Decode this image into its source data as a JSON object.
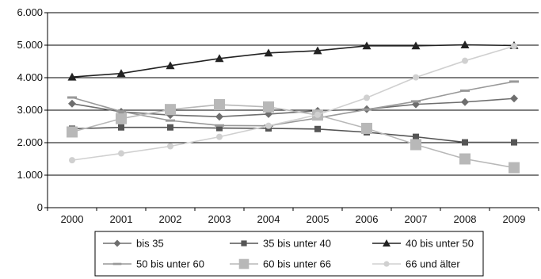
{
  "chart_data": {
    "type": "line",
    "title": "",
    "xlabel": "",
    "ylabel": "",
    "categories": [
      "2000",
      "2001",
      "2002",
      "2003",
      "2004",
      "2005",
      "2006",
      "2007",
      "2008",
      "2009"
    ],
    "ylim": [
      0,
      6000
    ],
    "yticks": [
      0,
      1000,
      2000,
      3000,
      4000,
      5000,
      6000
    ],
    "ytick_labels": [
      "0",
      "1.000",
      "2.000",
      "3.000",
      "4.000",
      "5.000",
      "6.000"
    ],
    "grid": "horizontal",
    "legend_position": "bottom",
    "series": [
      {
        "name": "bis 35",
        "marker": "diamond",
        "color": "#6e6e6e",
        "values": [
          3200,
          2950,
          2850,
          2800,
          2880,
          2980,
          3030,
          3180,
          3250,
          3360
        ]
      },
      {
        "name": "35 bis unter 40",
        "marker": "square-small",
        "color": "#555555",
        "values": [
          2430,
          2470,
          2470,
          2450,
          2440,
          2420,
          2320,
          2180,
          2010,
          2010
        ]
      },
      {
        "name": "40 bis unter 50",
        "marker": "triangle",
        "color": "#222222",
        "values": [
          4020,
          4130,
          4370,
          4590,
          4760,
          4830,
          4980,
          4980,
          5010,
          4990
        ]
      },
      {
        "name": "50 bis unter 60",
        "marker": "dash",
        "color": "#999999",
        "values": [
          3390,
          2960,
          2680,
          2530,
          2520,
          2760,
          3020,
          3270,
          3600,
          3880
        ]
      },
      {
        "name": "60 bis unter 66",
        "marker": "square-large",
        "color": "#b8b8b8",
        "values": [
          2330,
          2740,
          3020,
          3170,
          3100,
          2850,
          2440,
          1940,
          1500,
          1230
        ]
      },
      {
        "name": "66 und älter",
        "marker": "circle",
        "color": "#d0d0d0",
        "values": [
          1460,
          1670,
          1890,
          2180,
          2520,
          2860,
          3380,
          4010,
          4520,
          4970
        ]
      }
    ]
  }
}
